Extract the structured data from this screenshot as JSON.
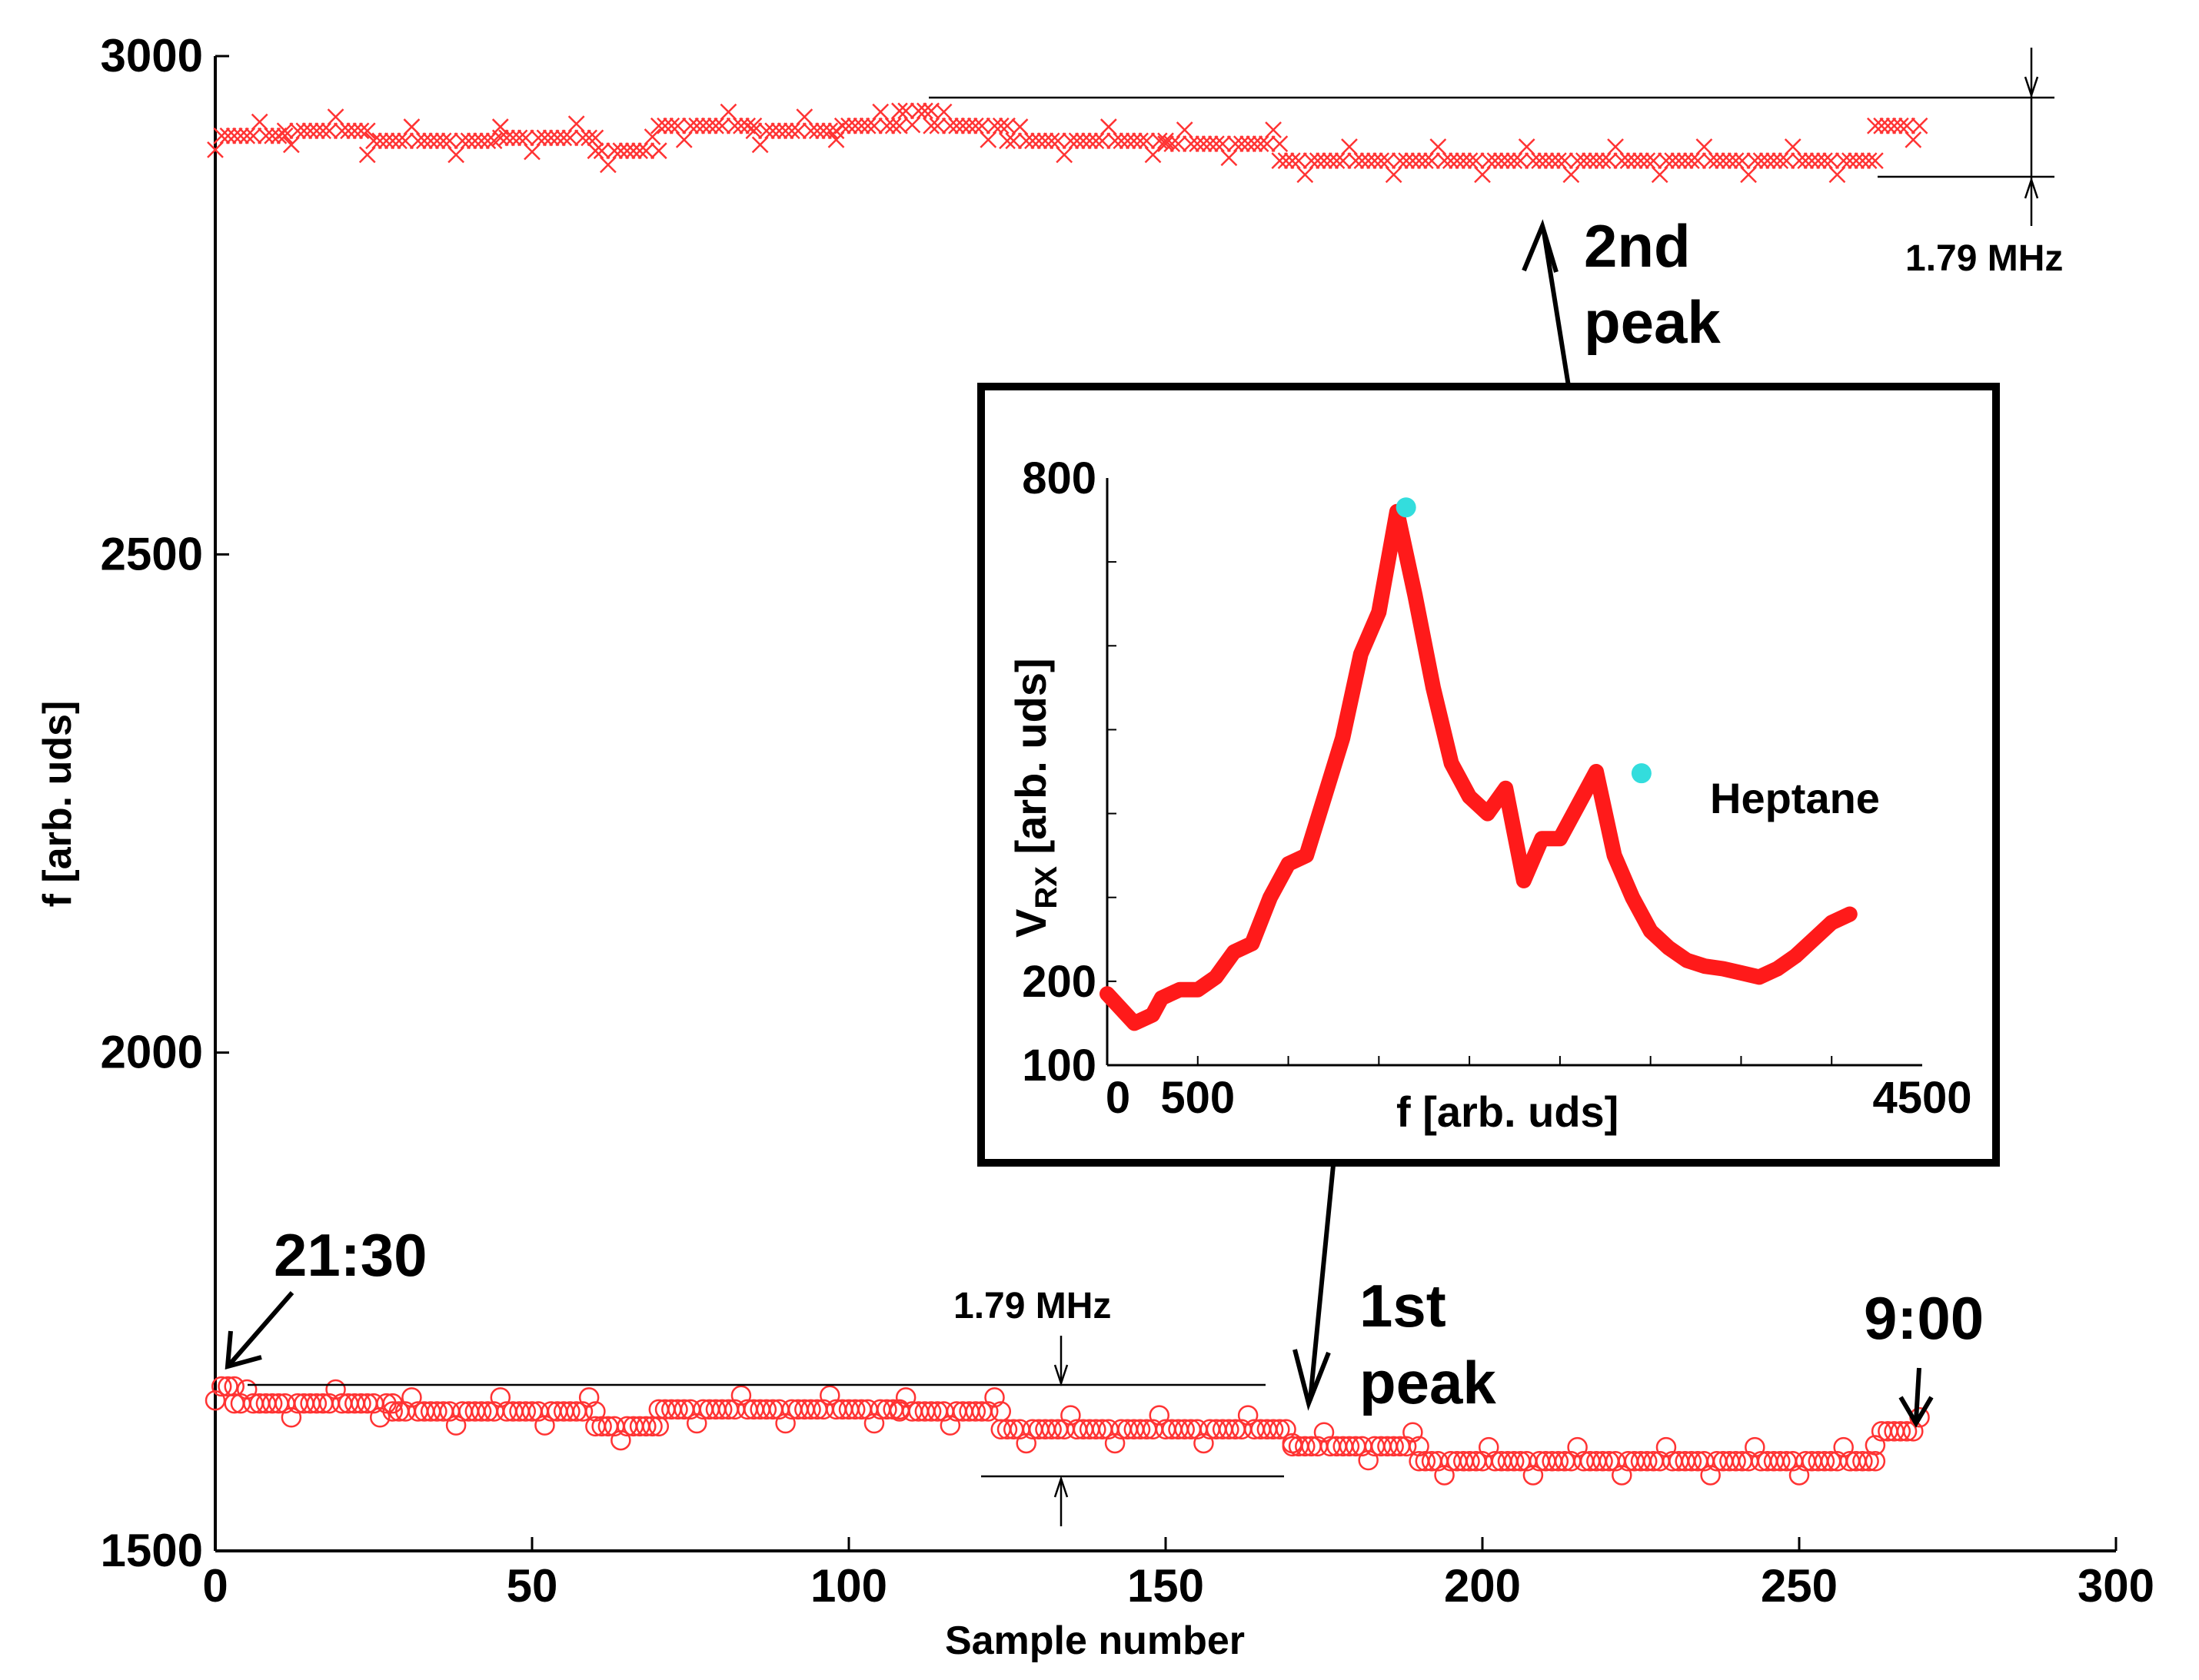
{
  "chart_data": [
    {
      "type": "scatter",
      "xlabel": "Sample number",
      "ylabel": "f [arb. uds]",
      "xlim": [
        0,
        300
      ],
      "ylim": [
        1500,
        3000
      ],
      "xticks": [
        "0",
        "50",
        "100",
        "150",
        "200",
        "250",
        "300"
      ],
      "yticks": [
        "1500",
        "2000",
        "2500",
        "3000"
      ],
      "color": "#ff3333",
      "series": [
        {
          "name": "2nd peak",
          "marker": "x",
          "segments": [
            {
              "x0": 0,
              "x1": 11,
              "y": 2920
            },
            {
              "x0": 11,
              "x1": 24,
              "y": 2925
            },
            {
              "x0": 24,
              "x1": 45,
              "y": 2915
            },
            {
              "x0": 45,
              "x1": 60,
              "y": 2918
            },
            {
              "x0": 60,
              "x1": 70,
              "y": 2905
            },
            {
              "x0": 70,
              "x1": 85,
              "y": 2930
            },
            {
              "x0": 85,
              "x1": 98,
              "y": 2925
            },
            {
              "x0": 98,
              "x1": 108,
              "y": 2930
            },
            {
              "x0": 108,
              "x1": 113,
              "y": 2945
            },
            {
              "x0": 113,
              "x1": 125,
              "y": 2930
            },
            {
              "x0": 125,
              "x1": 150,
              "y": 2915
            },
            {
              "x0": 150,
              "x1": 168,
              "y": 2912
            },
            {
              "x0": 168,
              "x1": 262,
              "y": 2895
            },
            {
              "x0": 262,
              "x1": 269,
              "y": 2930
            }
          ]
        },
        {
          "name": "1st peak",
          "marker": "o",
          "segments": [
            {
              "x0": 0,
              "x1": 3,
              "y": 1665
            },
            {
              "x0": 3,
              "x1": 28,
              "y": 1648
            },
            {
              "x0": 28,
              "x1": 60,
              "y": 1640
            },
            {
              "x0": 60,
              "x1": 70,
              "y": 1625
            },
            {
              "x0": 70,
              "x1": 108,
              "y": 1642
            },
            {
              "x0": 108,
              "x1": 124,
              "y": 1640
            },
            {
              "x0": 124,
              "x1": 170,
              "y": 1622
            },
            {
              "x0": 170,
              "x1": 190,
              "y": 1605
            },
            {
              "x0": 190,
              "x1": 262,
              "y": 1590
            },
            {
              "x0": 262,
              "x1": 269,
              "y": 1620
            }
          ]
        }
      ],
      "annotations": [
        {
          "id": "top-range",
          "text": "1.79 MHz"
        },
        {
          "id": "bottom-range",
          "text": "1.79 MHz"
        },
        {
          "id": "second-peak",
          "text_line1": "2nd",
          "text_line2": "peak"
        },
        {
          "id": "first-peak",
          "text_line1": "1st",
          "text_line2": "peak"
        },
        {
          "id": "start-time",
          "text": "21:30"
        },
        {
          "id": "end-time",
          "text": "9:00"
        }
      ]
    },
    {
      "type": "line",
      "title": "Heptane",
      "xlabel": "f [arb. uds]",
      "ylabel_main": "V",
      "ylabel_sub": "RX",
      "ylabel_rest": " [arb. uds]",
      "xlim": [
        0,
        4500
      ],
      "ylim": [
        100,
        800
      ],
      "xticks": [
        "0",
        "500",
        "4500"
      ],
      "yticks": [
        "100",
        "200",
        "800"
      ],
      "color": "#ff1a1a",
      "peak_color": "#33dddd",
      "x": [
        0,
        150,
        250,
        300,
        400,
        500,
        600,
        700,
        800,
        900,
        1000,
        1100,
        1200,
        1300,
        1400,
        1500,
        1600,
        1700,
        1800,
        1900,
        2000,
        2100,
        2200,
        2300,
        2400,
        2500,
        2600,
        2700,
        2800,
        2900,
        3000,
        3100,
        3200,
        3300,
        3400,
        3500,
        3600,
        3700,
        3800,
        3900,
        4000,
        4100
      ],
      "y": [
        185,
        150,
        160,
        180,
        190,
        190,
        205,
        235,
        245,
        300,
        340,
        350,
        420,
        490,
        590,
        640,
        760,
        660,
        550,
        460,
        420,
        400,
        430,
        320,
        370,
        370,
        410,
        450,
        350,
        300,
        260,
        240,
        225,
        218,
        215,
        210,
        205,
        215,
        230,
        250,
        270,
        280
      ],
      "peaks": [
        {
          "x": 1650,
          "y": 765
        },
        {
          "x": 2950,
          "y": 448
        }
      ]
    }
  ]
}
